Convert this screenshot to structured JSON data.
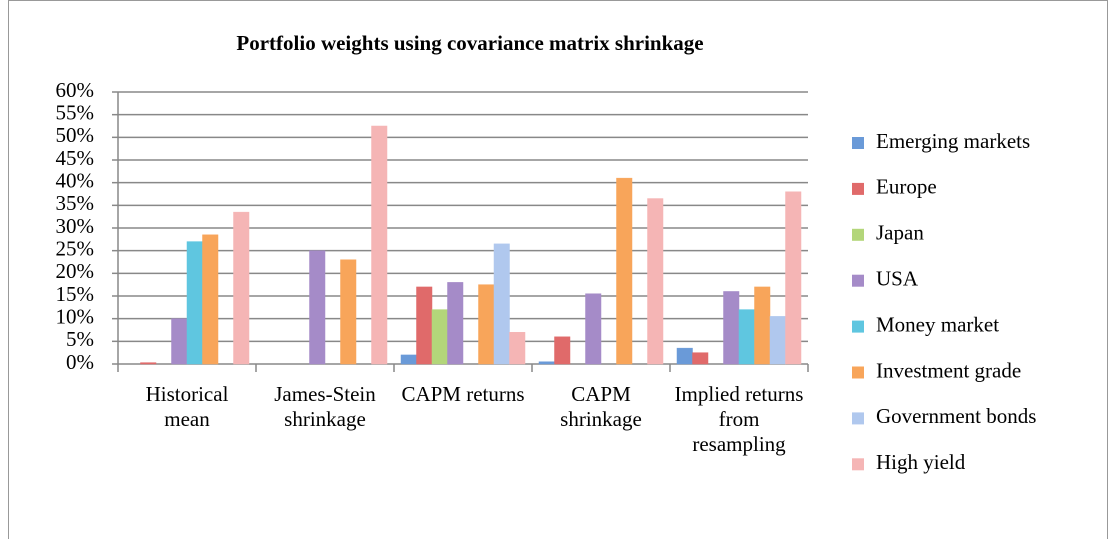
{
  "chart_data": {
    "type": "bar",
    "title": "Portfolio weights using covariance matrix shrinkage",
    "categories": [
      "Historical mean",
      "James-Stein shrinkage",
      "CAPM returns",
      "CAPM shrinkage",
      "Implied returns from resampling"
    ],
    "series": [
      {
        "name": "Emerging markets",
        "color": "#6a9ad8",
        "values": [
          0,
          0,
          2,
          0.5,
          3.5
        ]
      },
      {
        "name": "Europe",
        "color": "#e06a6a",
        "values": [
          0.3,
          0,
          17,
          6,
          2.5
        ]
      },
      {
        "name": "Japan",
        "color": "#b3d67a",
        "values": [
          0,
          0,
          12,
          0,
          0
        ]
      },
      {
        "name": "USA",
        "color": "#a58bc8",
        "values": [
          10,
          25,
          18,
          15.5,
          16
        ]
      },
      {
        "name": "Money market",
        "color": "#5fc6e0",
        "values": [
          27,
          0,
          0,
          0,
          12
        ]
      },
      {
        "name": "Investment grade",
        "color": "#f8a55a",
        "values": [
          28.5,
          23,
          17.5,
          41,
          17
        ]
      },
      {
        "name": "Government bonds",
        "color": "#b0c8ee",
        "values": [
          0,
          0,
          26.5,
          0,
          10.5
        ]
      },
      {
        "name": "High yield",
        "color": "#f5b5b5",
        "values": [
          33.5,
          52.5,
          7,
          36.5,
          38
        ]
      }
    ],
    "ylim": [
      0,
      60
    ],
    "yticks": [
      {
        "value": 0,
        "label": "0%"
      },
      {
        "value": 5,
        "label": "5%"
      },
      {
        "value": 10,
        "label": "10%"
      },
      {
        "value": 15,
        "label": "15%"
      },
      {
        "value": 20,
        "label": "20%"
      },
      {
        "value": 25,
        "label": "25%"
      },
      {
        "value": 30,
        "label": "30%"
      },
      {
        "value": 35,
        "label": "35%"
      },
      {
        "value": 40,
        "label": "40%"
      },
      {
        "value": 45,
        "label": "45%"
      },
      {
        "value": 50,
        "label": "50%"
      },
      {
        "value": 55,
        "label": "55%"
      },
      {
        "value": 60,
        "label": "60%"
      }
    ],
    "grid": true,
    "legend": "right"
  }
}
